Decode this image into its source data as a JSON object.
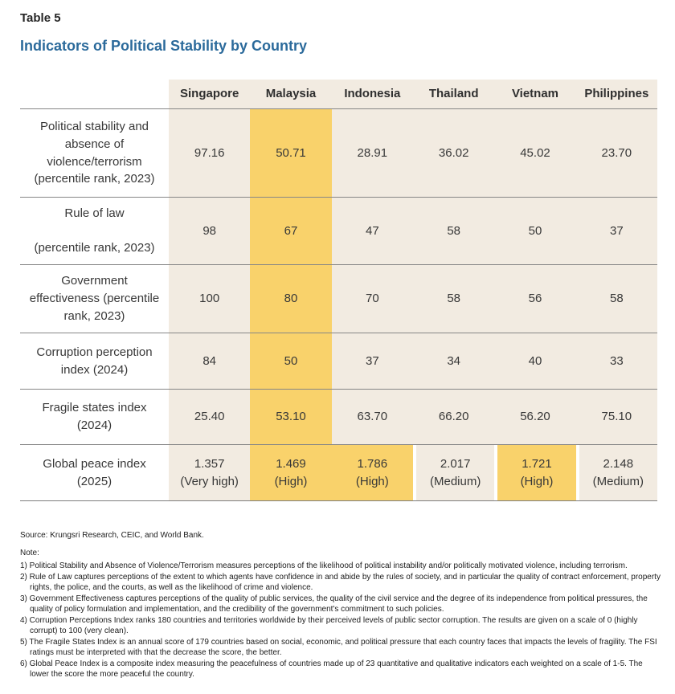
{
  "page": {
    "table_label": "Table 5",
    "title": "Indicators of Political Stability by Country"
  },
  "table": {
    "columns": [
      "Singapore",
      "Malaysia",
      "Indonesia",
      "Thailand",
      "Vietnam",
      "Philippines"
    ],
    "rows": [
      {
        "label": "Political stability and\nabsence of\nviolence/terrorism\n(percentile rank, 2023)",
        "values": [
          "97.16",
          "50.71",
          "28.91",
          "36.02",
          "45.02",
          "23.70"
        ]
      },
      {
        "label": "Rule of law\n\n(percentile rank, 2023)",
        "values": [
          "98",
          "67",
          "47",
          "58",
          "50",
          "37"
        ]
      },
      {
        "label": "Government\neffectiveness (percentile\nrank, 2023)",
        "values": [
          "100",
          "80",
          "70",
          "58",
          "56",
          "58"
        ]
      },
      {
        "label": "Corruption perception\nindex (2024)",
        "values": [
          "84",
          "50",
          "37",
          "34",
          "40",
          "33"
        ]
      },
      {
        "label": "Fragile states index\n(2024)",
        "values": [
          "25.40",
          "53.10",
          "63.70",
          "66.20",
          "56.20",
          "75.10"
        ]
      },
      {
        "label": "Global peace index\n(2025)",
        "values": [
          "1.357\n(Very high)",
          "1.469\n(High)",
          "1.786\n(High)",
          "2.017\n(Medium)",
          "1.721\n(High)",
          "2.148\n(Medium)"
        ]
      }
    ],
    "highlighted_column": "Malaysia",
    "highlighted_cells_last_row": [
      "Malaysia",
      "Indonesia",
      "Vietnam"
    ]
  },
  "footer": {
    "source": "Source: Krungsri Research, CEIC, and World Bank.",
    "note_label": "Note:",
    "notes": [
      "1) Political Stability and Absence of Violence/Terrorism measures perceptions of the likelihood of political instability and/or politically motivated violence, including terrorism.",
      "2) Rule of Law captures perceptions of the extent to which agents have confidence in and abide by the rules of society, and in particular the quality of contract enforcement, property rights, the police, and the courts, as well as the likelihood of crime and violence.",
      "3) Government Effectiveness captures perceptions of the quality of public services, the quality of the civil service and the degree of its independence from political pressures, the quality of policy formulation and implementation, and the credibility of the government's commitment to such policies.",
      "4) Corruption Perceptions Index ranks 180 countries and territories worldwide by their perceived levels of public sector corruption. The results are given on a scale of 0 (highly corrupt) to 100 (very clean).",
      "5) The Fragile States Index is an annual score of 179 countries based on social, economic, and political pressure that each country faces that impacts the levels of fragility. The FSI ratings must be interpreted with that the decrease the score, the better.",
      "6) Global Peace Index is a composite index measuring the peacefulness of countries made up of 23 quantitative and qualitative indicators each weighted on a scale of 1-5. The lower the score the more peaceful the country."
    ]
  },
  "colors": {
    "title_blue": "#2b6a9b",
    "table_beige": "#f2ebe1",
    "highlight_yellow": "#f9d26b",
    "divider_gray": "#7d7d7d",
    "text_dark": "#3b3b3b"
  }
}
